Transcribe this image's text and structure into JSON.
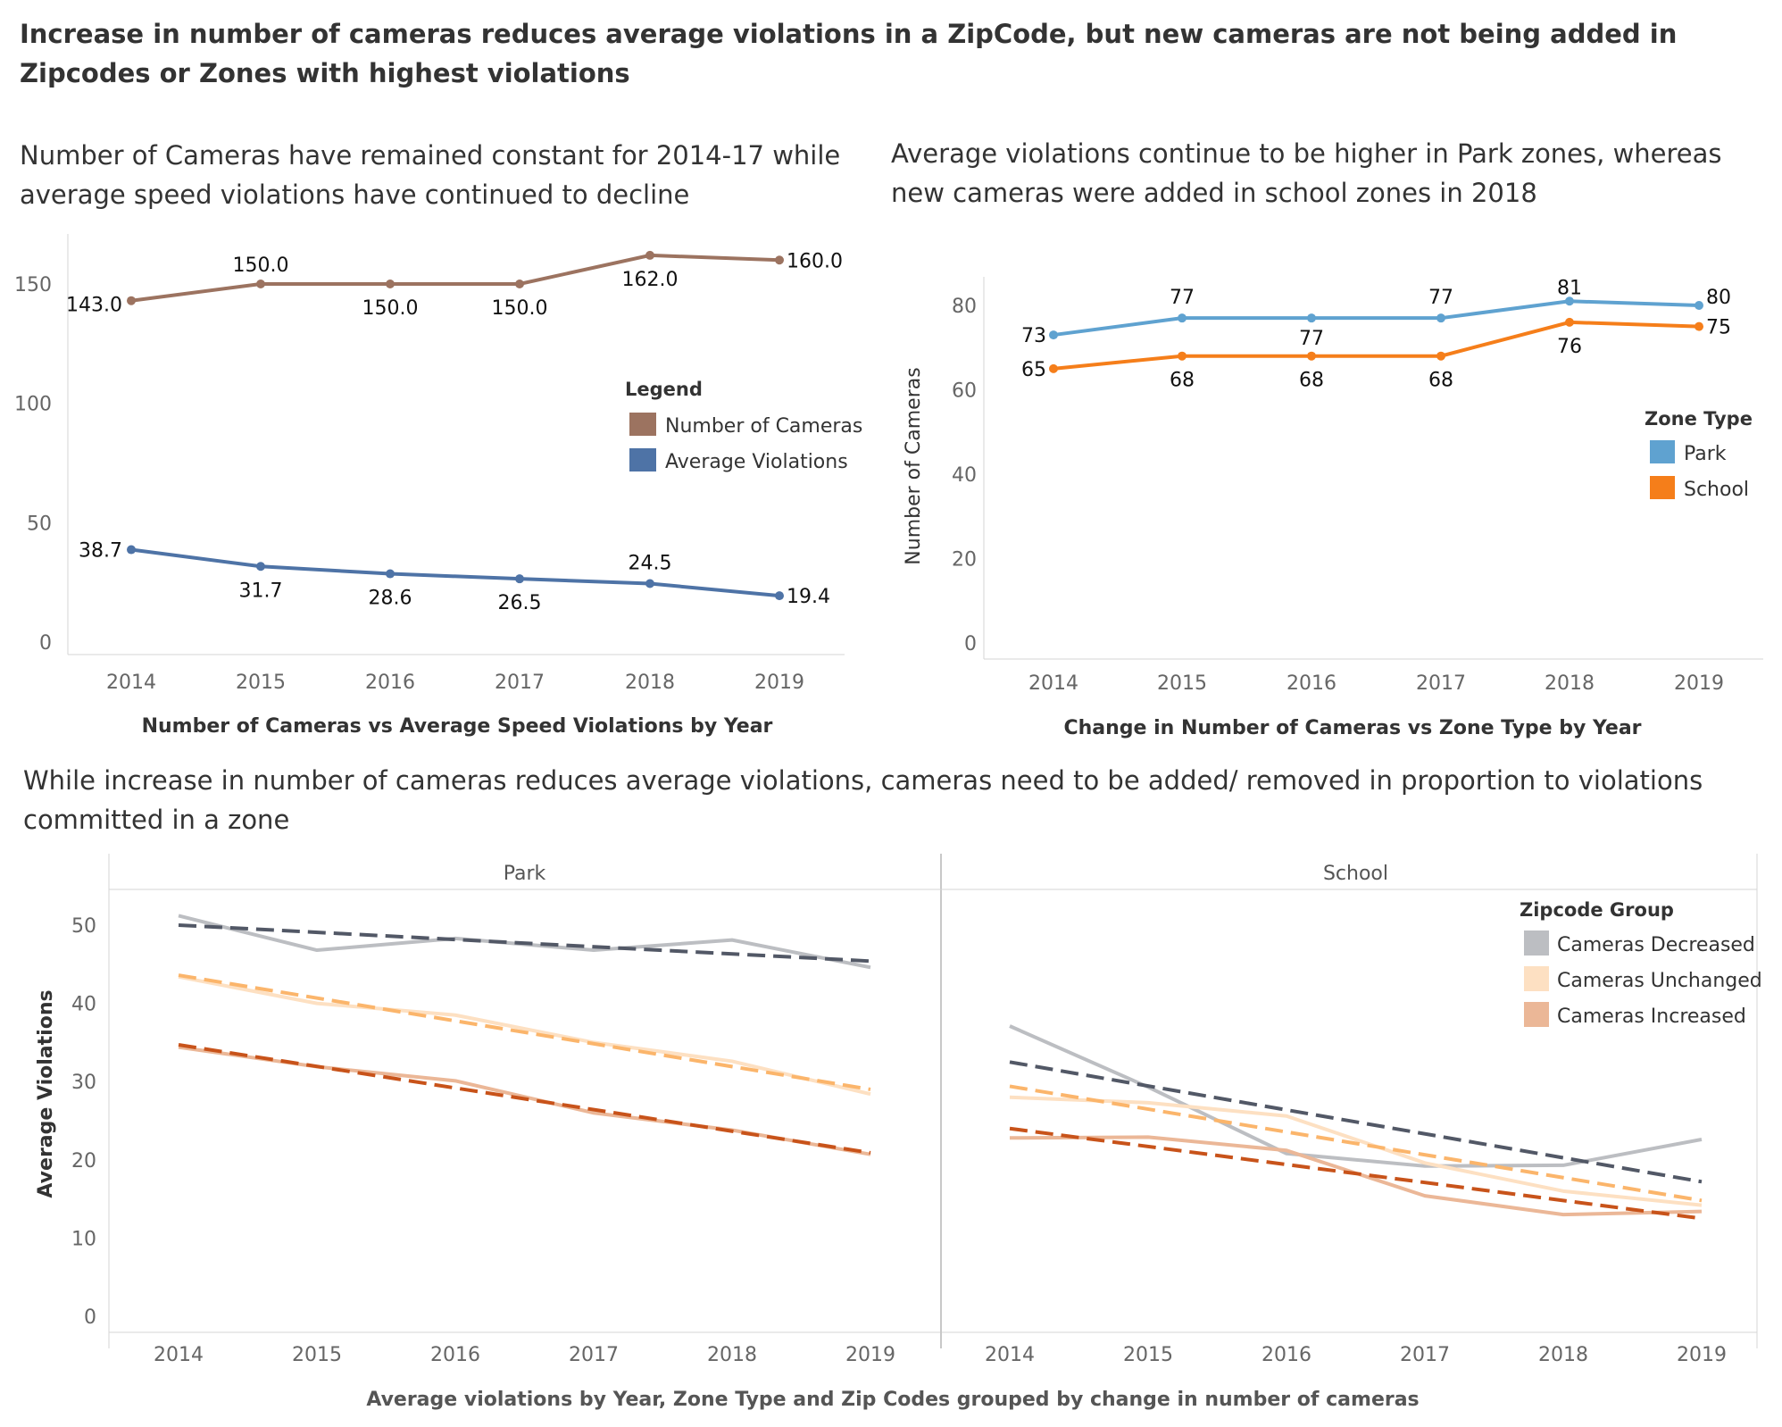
{
  "dashboard": {
    "title": "Increase in number of cameras reduces average violations in a ZipCode, but new cameras are not being added in Zipcodes or Zones with highest violations"
  },
  "chart_data": [
    {
      "type": "line",
      "title": "Number of Cameras have remained constant for 2014-17 while average speed violations have continued to decline",
      "xlabel": "Number of  Cameras vs Average Speed Violations by Year",
      "ylabel": "",
      "x": [
        "2014",
        "2015",
        "2016",
        "2017",
        "2018",
        "2019"
      ],
      "ylim": [
        0,
        165
      ],
      "yticks": [
        0,
        50,
        100,
        150
      ],
      "grid": false,
      "legend": {
        "title": "Legend",
        "position": "right"
      },
      "series": [
        {
          "name": "Number of Cameras",
          "color": "#9c7360",
          "values": [
            143.0,
            150.0,
            150.0,
            150.0,
            162.0,
            160.0
          ],
          "labels": [
            "143.0",
            "150.0",
            "150.0",
            "150.0",
            "162.0",
            "160.0"
          ]
        },
        {
          "name": "Average Violations",
          "color": "#4e73a6",
          "values": [
            38.7,
            31.7,
            28.6,
            26.5,
            24.5,
            19.4
          ],
          "labels": [
            "38.7",
            "31.7",
            "28.6",
            "26.5",
            "24.5",
            "19.4"
          ]
        }
      ]
    },
    {
      "type": "line",
      "title": "Average violations continue to be higher in Park zones, whereas new cameras were added in school zones in 2018",
      "xlabel": "Change in Number of Cameras vs Zone Type by Year",
      "ylabel": "Number of Cameras",
      "x": [
        "2014",
        "2015",
        "2016",
        "2017",
        "2018",
        "2019"
      ],
      "ylim": [
        0,
        87
      ],
      "yticks": [
        0,
        20,
        40,
        60,
        80
      ],
      "grid": false,
      "legend": {
        "title": "Zone Type",
        "position": "right"
      },
      "series": [
        {
          "name": "Park",
          "color": "#5fa2d0",
          "values": [
            73,
            77,
            77,
            77,
            81,
            80
          ],
          "labels": [
            "73",
            "77",
            "77",
            "77",
            "81",
            "80"
          ]
        },
        {
          "name": "School",
          "color": "#f57e1a",
          "values": [
            65,
            68,
            68,
            68,
            76,
            75
          ],
          "labels": [
            "65",
            "68",
            "68",
            "68",
            "76",
            "75"
          ]
        }
      ]
    },
    {
      "type": "line",
      "title": "While increase in number of cameras reduces average violations, cameras need to be added/ removed in proportion to violations committed in a zone",
      "xlabel": "Average violations by Year, Zone Type and Zip Codes grouped by change in number of cameras",
      "ylabel": "Average Violations",
      "x": [
        "2014",
        "2015",
        "2016",
        "2017",
        "2018",
        "2019"
      ],
      "ylim": [
        0,
        55
      ],
      "yticks": [
        0,
        10,
        20,
        30,
        40,
        50
      ],
      "grid": false,
      "legend": {
        "title": "Zipcode Group",
        "position": "top-right"
      },
      "groups": [
        "Cameras Decreased",
        "Cameras Unchanged",
        "Cameras Increased"
      ],
      "colors": {
        "Cameras Decreased": "#bcbec2",
        "Cameras Unchanged": "#fde0c2",
        "Cameras Increased": "#ebb797",
        "trend": {
          "Cameras Decreased": "#525866",
          "Cameras Unchanged": "#fbb56b",
          "Cameras Increased": "#c8531a"
        }
      },
      "panels": [
        {
          "name": "Park",
          "series": [
            {
              "name": "Cameras Decreased",
              "values": [
                51.2,
                46.8,
                48.3,
                46.8,
                48.1,
                44.6
              ],
              "trend": [
                50.0,
                45.4
              ]
            },
            {
              "name": "Cameras Unchanged",
              "values": [
                43.4,
                40.0,
                38.5,
                35.0,
                32.6,
                28.4
              ],
              "trend": [
                43.6,
                29.0
              ]
            },
            {
              "name": "Cameras Increased",
              "values": [
                34.4,
                31.9,
                30.1,
                26.0,
                23.8,
                20.7
              ],
              "trend": [
                34.7,
                20.9
              ]
            }
          ]
        },
        {
          "name": "School",
          "series": [
            {
              "name": "Cameras Decreased",
              "values": [
                37.1,
                29.3,
                20.8,
                19.2,
                19.3,
                22.6
              ],
              "trend": [
                32.5,
                17.2
              ]
            },
            {
              "name": "Cameras Unchanged",
              "values": [
                28.0,
                27.3,
                25.6,
                19.6,
                16.0,
                14.2
              ],
              "trend": [
                29.4,
                14.8
              ]
            },
            {
              "name": "Cameras Increased",
              "values": [
                22.8,
                22.9,
                21.2,
                15.4,
                13.0,
                13.4
              ],
              "trend": [
                24.0,
                12.5
              ]
            }
          ]
        }
      ]
    }
  ]
}
